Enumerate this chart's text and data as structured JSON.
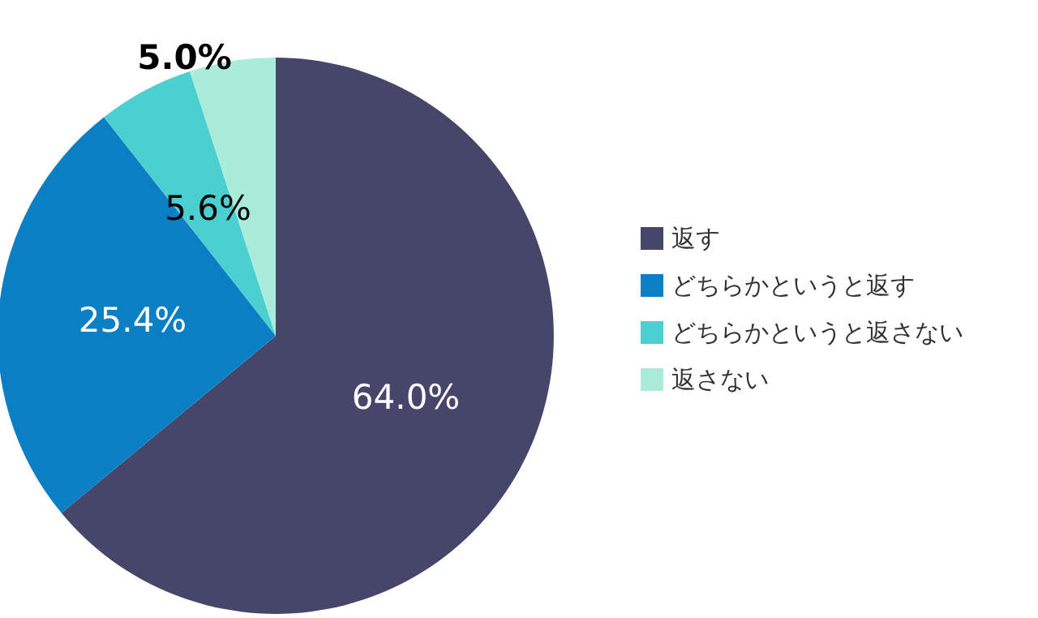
{
  "chart_data": {
    "type": "pie",
    "categories": [
      "返す",
      "どちらかというと返す",
      "どちらかというと返さない",
      "返さない"
    ],
    "values": [
      64.0,
      25.4,
      5.6,
      5.0
    ],
    "value_labels": [
      "64.0%",
      "25.4%",
      "5.6%",
      "5.0%"
    ],
    "colors": [
      "#46466b",
      "#0b7fc4",
      "#4ccfd0",
      "#a8ecd9"
    ],
    "legend": "right"
  }
}
